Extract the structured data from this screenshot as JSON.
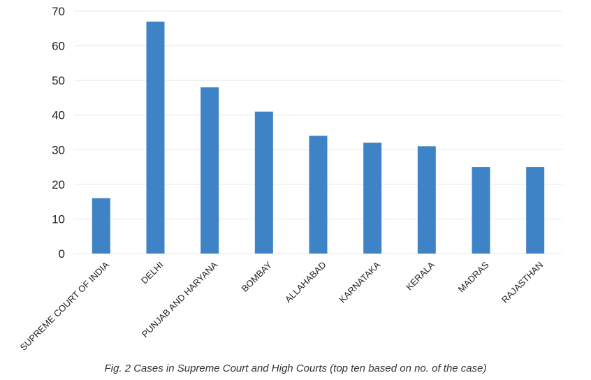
{
  "chart_data": {
    "type": "bar",
    "categories": [
      "SUPREME COURT OF INDIA",
      "DELHI",
      "PUNJAB AND HARYANA",
      "BOMBAY",
      "ALLAHABAD",
      "KARNATAKA",
      "KERALA",
      "MADRAS",
      "RAJASTHAN"
    ],
    "values": [
      16,
      67,
      48,
      41,
      34,
      32,
      31,
      25,
      25
    ],
    "ylim": [
      0,
      70
    ],
    "yticks": [
      "0",
      "10",
      "20",
      "30",
      "40",
      "50",
      "60",
      "70"
    ],
    "grid": true,
    "legend": "none",
    "bar_color": "#3e83c6",
    "grid_color": "#e8e8e8"
  },
  "caption": "Fig. 2 Cases in Supreme Court and High Courts (top ten based on no. of the case)"
}
